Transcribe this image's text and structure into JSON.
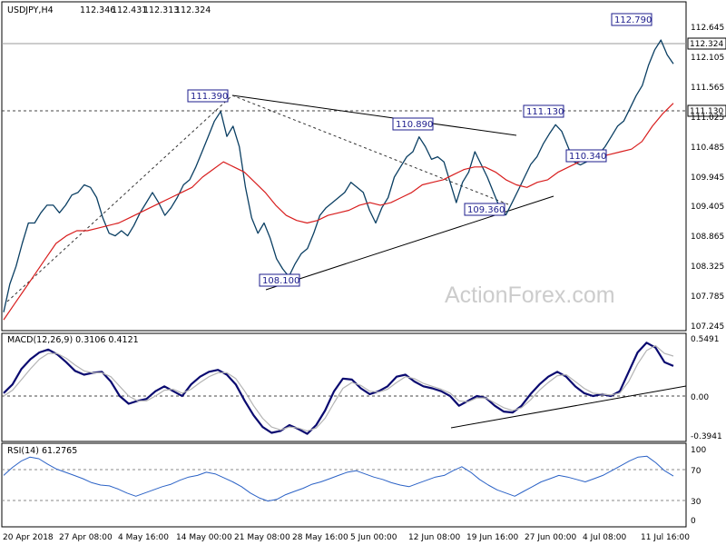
{
  "chart_data": [
    {
      "type": "line",
      "title": "USDJPY,H4",
      "ohlc": {
        "open": "112.346",
        "high": "112.431",
        "low": "112.313",
        "close": "112.324"
      },
      "x_tick_labels": [
        "20 Apr 2018",
        "27 Apr 08:00",
        "4 May 16:00",
        "14 May 00:00",
        "21 May 08:00",
        "28 May 16:00",
        "5 Jun 00:00",
        "12 Jun 08:00",
        "19 Jun 16:00",
        "27 Jun 00:00",
        "4 Jul 08:00",
        "11 Jul 16:00"
      ],
      "y_tick_labels": [
        "112.645",
        "112.105",
        "111.565",
        "111.025",
        "110.485",
        "109.945",
        "109.405",
        "108.865",
        "108.325",
        "107.785",
        "107.245"
      ],
      "ylim": [
        107.16,
        113.22
      ],
      "series": [
        {
          "name": "",
          "color": "#0b3f63",
          "values": [
            107.45,
            108.0,
            108.35,
            108.8,
            109.2,
            109.2,
            109.4,
            109.55,
            109.55,
            109.4,
            109.55,
            109.75,
            109.8,
            109.95,
            109.9,
            109.7,
            109.3,
            109.0,
            108.95,
            109.05,
            108.95,
            109.15,
            109.4,
            109.6,
            109.8,
            109.6,
            109.35,
            109.5,
            109.7,
            109.95,
            110.05,
            110.3,
            110.6,
            110.9,
            111.2,
            111.39,
            110.9,
            111.1,
            110.7,
            109.9,
            109.3,
            109.0,
            109.2,
            108.9,
            108.5,
            108.3,
            108.15,
            108.4,
            108.6,
            108.7,
            109.0,
            109.35,
            109.5,
            109.6,
            109.7,
            109.8,
            110.0,
            109.9,
            109.8,
            109.45,
            109.2,
            109.5,
            109.7,
            110.1,
            110.3,
            110.5,
            110.6,
            110.89,
            110.7,
            110.45,
            110.5,
            110.4,
            110.0,
            109.6,
            110.0,
            110.2,
            110.6,
            110.35,
            110.1,
            109.8,
            109.5,
            109.36,
            109.6,
            109.85,
            110.1,
            110.35,
            110.5,
            110.75,
            110.95,
            111.13,
            111.0,
            110.7,
            110.4,
            110.34,
            110.4,
            110.5,
            110.55,
            110.7,
            110.9,
            111.1,
            111.2,
            111.45,
            111.7,
            111.9,
            112.3,
            112.6,
            112.79,
            112.5,
            112.324
          ]
        },
        {
          "name": "",
          "color": "#d81e1e",
          "values": [
            107.3,
            107.6,
            107.9,
            108.2,
            108.5,
            108.8,
            108.95,
            109.05,
            109.05,
            109.1,
            109.15,
            109.2,
            109.3,
            109.4,
            109.5,
            109.6,
            109.7,
            109.8,
            109.9,
            110.1,
            110.25,
            110.4,
            110.3,
            110.2,
            110.0,
            109.8,
            109.55,
            109.35,
            109.25,
            109.2,
            109.25,
            109.35,
            109.4,
            109.45,
            109.55,
            109.6,
            109.55,
            109.6,
            109.7,
            109.8,
            109.95,
            110.0,
            110.05,
            110.15,
            110.25,
            110.3,
            110.3,
            110.2,
            110.05,
            109.95,
            109.9,
            110.0,
            110.05,
            110.2,
            110.3,
            110.4,
            110.45,
            110.5,
            110.55,
            110.6,
            110.65,
            110.8,
            111.1,
            111.35,
            111.55
          ]
        }
      ],
      "annotations": [
        "111.390",
        "110.890",
        "111.130",
        "112.790",
        "110.340",
        "109.360",
        "108.100"
      ],
      "price_tags": [
        "112.324",
        "111.130"
      ],
      "watermark": "ActionForex.com"
    },
    {
      "type": "line",
      "title": "MACD(12,26,9) 0.3106 0.4121",
      "y_tick_labels": [
        "0.5491",
        "0.00",
        "-0.3941"
      ],
      "ylim": [
        -0.45,
        0.6
      ],
      "series": [
        {
          "name": "",
          "color": "#0a0a70",
          "values": [
            0.03,
            0.12,
            0.28,
            0.38,
            0.45,
            0.48,
            0.43,
            0.35,
            0.26,
            0.22,
            0.24,
            0.25,
            0.15,
            0.0,
            -0.08,
            -0.05,
            -0.03,
            0.05,
            0.1,
            0.05,
            0.0,
            0.12,
            0.2,
            0.25,
            0.27,
            0.22,
            0.12,
            -0.05,
            -0.2,
            -0.32,
            -0.38,
            -0.36,
            -0.3,
            -0.34,
            -0.39,
            -0.3,
            -0.15,
            0.05,
            0.18,
            0.17,
            0.08,
            0.02,
            0.05,
            0.1,
            0.2,
            0.22,
            0.15,
            0.1,
            0.08,
            0.05,
            0.0,
            -0.1,
            -0.05,
            0.0,
            -0.02,
            -0.1,
            -0.16,
            -0.17,
            -0.1,
            0.02,
            0.12,
            0.2,
            0.25,
            0.2,
            0.1,
            0.03,
            0.0,
            0.02,
            0.0,
            0.05,
            0.25,
            0.45,
            0.55,
            0.5,
            0.35,
            0.3106
          ]
        },
        {
          "name": "",
          "color": "#b4b4b4",
          "values": [
            0.0,
            0.06,
            0.17,
            0.28,
            0.38,
            0.44,
            0.44,
            0.39,
            0.32,
            0.26,
            0.24,
            0.24,
            0.2,
            0.1,
            0.0,
            -0.05,
            -0.05,
            0.0,
            0.06,
            0.07,
            0.03,
            0.07,
            0.14,
            0.2,
            0.24,
            0.24,
            0.18,
            0.05,
            -0.1,
            -0.23,
            -0.32,
            -0.35,
            -0.32,
            -0.33,
            -0.36,
            -0.33,
            -0.23,
            -0.07,
            0.08,
            0.14,
            0.11,
            0.05,
            0.04,
            0.07,
            0.14,
            0.2,
            0.18,
            0.13,
            0.1,
            0.07,
            0.03,
            -0.05,
            -0.06,
            -0.02,
            -0.02,
            -0.07,
            -0.12,
            -0.15,
            -0.12,
            -0.04,
            0.06,
            0.14,
            0.21,
            0.22,
            0.15,
            0.08,
            0.03,
            0.02,
            0.01,
            0.03,
            0.15,
            0.33,
            0.47,
            0.52,
            0.44,
            0.4121
          ]
        }
      ]
    },
    {
      "type": "line",
      "title": "RSI(14) 61.2765",
      "y_tick_labels": [
        "100",
        "70",
        "30",
        "0"
      ],
      "ylim": [
        0,
        100
      ],
      "series": [
        {
          "name": "",
          "color": "#2b62c6",
          "values": [
            62,
            72,
            80,
            85,
            83,
            76,
            70,
            66,
            62,
            58,
            53,
            50,
            49,
            45,
            40,
            36,
            40,
            44,
            48,
            51,
            56,
            60,
            62,
            66,
            64,
            59,
            54,
            48,
            40,
            34,
            30,
            32,
            38,
            42,
            46,
            51,
            54,
            58,
            62,
            66,
            68,
            64,
            60,
            57,
            53,
            50,
            48,
            52,
            56,
            60,
            62,
            68,
            73,
            66,
            57,
            50,
            44,
            40,
            36,
            42,
            48,
            54,
            58,
            62,
            60,
            57,
            54,
            58,
            62,
            68,
            74,
            80,
            85,
            86,
            78,
            68,
            61.2765
          ]
        }
      ]
    }
  ]
}
